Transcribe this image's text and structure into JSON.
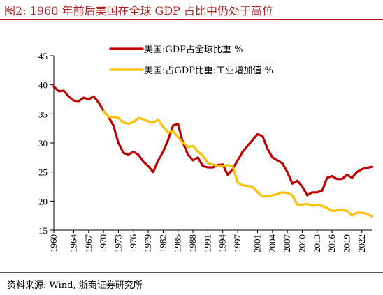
{
  "figure": {
    "title": "图2:   1960 年前后美国在全球 GDP 占比中仍处于高位",
    "source": "资料来源:  Wind,  浙商证券研究所"
  },
  "chart_data": {
    "type": "line",
    "title": "1960 年前后美国在全球 GDP 占比中仍处于高位",
    "xlabel": "",
    "ylabel": "",
    "ylim": [
      15,
      45
    ],
    "yticks": [
      15,
      20,
      25,
      30,
      35,
      40,
      45
    ],
    "xlim": [
      1960,
      2024
    ],
    "xticks": [
      1960,
      1964,
      1967,
      1970,
      1973,
      1976,
      1979,
      1982,
      1985,
      1988,
      1991,
      1994,
      1997,
      2001,
      2004,
      2007,
      2010,
      2013,
      2016,
      2019,
      2022
    ],
    "grid": false,
    "legend": "top-right",
    "series": [
      {
        "name": "美国:GDP占全球比重 %",
        "color": "#c00000",
        "x": [
          1960,
          1961,
          1962,
          1963,
          1964,
          1965,
          1966,
          1967,
          1968,
          1969,
          1970,
          1971,
          1972,
          1973,
          1974,
          1975,
          1976,
          1977,
          1978,
          1979,
          1980,
          1981,
          1982,
          1983,
          1984,
          1985,
          1986,
          1987,
          1988,
          1989,
          1990,
          1991,
          1992,
          1993,
          1994,
          1995,
          1996,
          1997,
          1998,
          1999,
          2000,
          2001,
          2002,
          2003,
          2004,
          2005,
          2006,
          2007,
          2008,
          2009,
          2010,
          2011,
          2012,
          2013,
          2014,
          2015,
          2016,
          2017,
          2018,
          2019,
          2020,
          2021,
          2022,
          2023,
          2024
        ],
        "values": [
          39.7,
          38.9,
          39.0,
          38.0,
          37.3,
          37.2,
          37.8,
          37.5,
          38.0,
          37.0,
          35.5,
          34.5,
          33.0,
          30.0,
          28.3,
          28.0,
          28.5,
          28.0,
          26.8,
          26.0,
          25.0,
          27.0,
          28.5,
          30.5,
          33.0,
          33.3,
          30.0,
          28.0,
          27.0,
          27.5,
          26.0,
          25.8,
          25.8,
          26.2,
          26.3,
          24.5,
          25.5,
          27.0,
          28.5,
          29.5,
          30.5,
          31.5,
          31.2,
          29.0,
          27.5,
          27.0,
          26.5,
          25.0,
          23.0,
          23.5,
          22.5,
          21.0,
          21.5,
          21.5,
          21.8,
          24.0,
          24.3,
          23.8,
          23.8,
          24.5,
          24.0,
          25.0,
          25.5,
          25.7,
          25.9
        ]
      },
      {
        "name": "美国:占GDP比重:工业增加值 %",
        "color": "#ffc000",
        "x": [
          1970,
          1971,
          1972,
          1973,
          1974,
          1975,
          1976,
          1977,
          1978,
          1979,
          1980,
          1981,
          1982,
          1983,
          1984,
          1985,
          1986,
          1987,
          1988,
          1989,
          1990,
          1991,
          1992,
          1993,
          1994,
          1995,
          1996,
          1997,
          1998,
          1999,
          2000,
          2001,
          2002,
          2003,
          2004,
          2005,
          2006,
          2007,
          2008,
          2009,
          2010,
          2011,
          2012,
          2013,
          2014,
          2015,
          2016,
          2017,
          2018,
          2019,
          2020,
          2021,
          2022,
          2023,
          2024
        ],
        "values": [
          35.5,
          34.5,
          34.5,
          34.3,
          33.5,
          33.3,
          33.6,
          34.3,
          34.1,
          33.7,
          33.5,
          34.0,
          32.8,
          31.8,
          32.0,
          31.0,
          30.0,
          29.3,
          29.5,
          28.5,
          27.8,
          26.5,
          26.3,
          26.0,
          26.0,
          26.2,
          26.0,
          23.2,
          22.7,
          22.6,
          22.5,
          21.5,
          20.8,
          20.8,
          21.0,
          21.2,
          21.5,
          21.4,
          21.0,
          19.4,
          19.4,
          19.5,
          19.2,
          19.3,
          19.2,
          18.8,
          18.3,
          18.4,
          18.5,
          18.3,
          17.5,
          18.0,
          18.0,
          17.8,
          17.4
        ]
      }
    ]
  }
}
